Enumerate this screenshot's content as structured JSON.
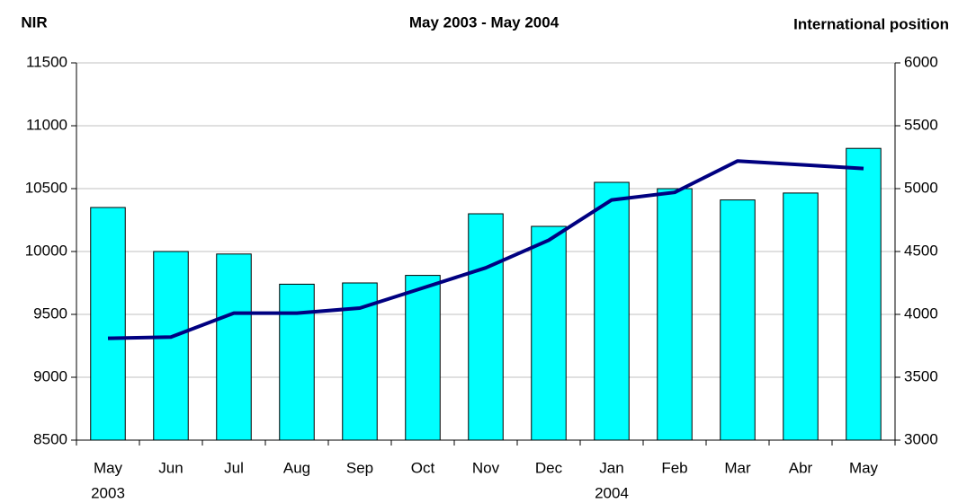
{
  "chart_data": {
    "type": "bar_line",
    "title": "May 2003 - May 2004",
    "ylabel": "NIR",
    "y2label": "International position",
    "categories": [
      "May",
      "Jun",
      "Jul",
      "Aug",
      "Sep",
      "Oct",
      "Nov",
      "Dec",
      "Jan",
      "Feb",
      "Mar",
      "Abr",
      "May"
    ],
    "group_labels": [
      "2003",
      null,
      null,
      null,
      null,
      null,
      null,
      null,
      "2004",
      null,
      null,
      null,
      null
    ],
    "series": [
      {
        "type": "bar",
        "color": "#00ffff",
        "values": [
          10350,
          10000,
          9980,
          9740,
          9750,
          9810,
          10300,
          10200,
          10550,
          10500,
          10410,
          10465,
          10820
        ]
      },
      {
        "type": "line",
        "axis": "y2",
        "color": "#000080",
        "values": [
          3810,
          3820,
          4010,
          4010,
          4050,
          4210,
          4370,
          4590,
          4910,
          4970,
          5220,
          5190,
          5160
        ]
      }
    ],
    "ylim": [
      8500,
      11500
    ],
    "yticks": [
      8500,
      9000,
      9500,
      10000,
      10500,
      11000,
      11500
    ],
    "y2lim": [
      3000,
      6000
    ],
    "y2ticks": [
      3000,
      3500,
      4000,
      4500,
      5000,
      5500,
      6000
    ],
    "grid": true
  }
}
